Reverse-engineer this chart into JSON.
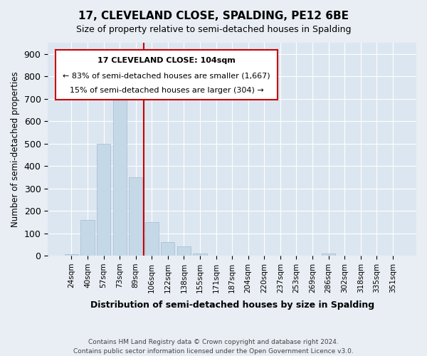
{
  "title1": "17, CLEVELAND CLOSE, SPALDING, PE12 6BE",
  "title2": "Size of property relative to semi-detached houses in Spalding",
  "xlabel": "Distribution of semi-detached houses by size in Spalding",
  "ylabel": "Number of semi-detached properties",
  "footnote1": "Contains HM Land Registry data © Crown copyright and database right 2024.",
  "footnote2": "Contains public sector information licensed under the Open Government Licence v3.0.",
  "annotation_line1": "17 CLEVELAND CLOSE: 104sqm",
  "annotation_line2": "← 83% of semi-detached houses are smaller (1,667)",
  "annotation_line3": "15% of semi-detached houses are larger (304) →",
  "property_size": 104,
  "categories": [
    "24sqm",
    "40sqm",
    "57sqm",
    "73sqm",
    "89sqm",
    "106sqm",
    "122sqm",
    "138sqm",
    "155sqm",
    "171sqm",
    "187sqm",
    "204sqm",
    "220sqm",
    "237sqm",
    "253sqm",
    "269sqm",
    "286sqm",
    "302sqm",
    "318sqm",
    "335sqm",
    "351sqm"
  ],
  "values": [
    5,
    160,
    500,
    715,
    350,
    150,
    60,
    40,
    10,
    0,
    0,
    0,
    0,
    0,
    0,
    0,
    10,
    0,
    0,
    0,
    0
  ],
  "bar_color": "#c5d8e8",
  "bar_edge_color": "#a0bcd0",
  "marker_color": "#cc0000",
  "marker_bin_index": 5,
  "ylim": [
    0,
    950
  ],
  "yticks": [
    0,
    100,
    200,
    300,
    400,
    500,
    600,
    700,
    800,
    900
  ],
  "bg_color": "#e8eef4",
  "plot_bg_color": "#dce6f0",
  "grid_color": "#ffffff",
  "annotation_box_color": "#ffffff",
  "annotation_box_edge": "#cc0000"
}
